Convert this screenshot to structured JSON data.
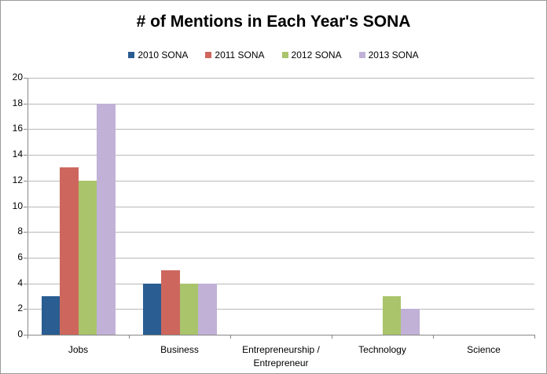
{
  "chart_data": {
    "type": "bar",
    "title": "# of Mentions in Each Year's SONA",
    "xlabel": "",
    "ylabel": "",
    "ylim": [
      0,
      20
    ],
    "yticks": [
      0,
      2,
      4,
      6,
      8,
      10,
      12,
      14,
      16,
      18,
      20
    ],
    "grid": true,
    "legend_position": "top",
    "categories": [
      "Jobs",
      "Business",
      "Entrepreneurship / Entrepreneur",
      "Technology",
      "Science"
    ],
    "series": [
      {
        "name": "2010 SONA",
        "color": "#2a5d92",
        "values": [
          3,
          4,
          0,
          0,
          0
        ]
      },
      {
        "name": "2011 SONA",
        "color": "#cd675e",
        "values": [
          13,
          5,
          0,
          0,
          0
        ]
      },
      {
        "name": "2012 SONA",
        "color": "#a9c46b",
        "values": [
          12,
          4,
          0,
          3,
          0
        ]
      },
      {
        "name": "2013 SONA",
        "color": "#c1b1d6",
        "values": [
          18,
          4,
          0,
          2,
          0
        ]
      }
    ]
  },
  "labels": {
    "title": "# of Mentions in Each Year's SONA",
    "legend": [
      "2010 SONA",
      "2011 SONA",
      "2012 SONA",
      "2013 SONA"
    ],
    "yticks": [
      "0",
      "2",
      "4",
      "6",
      "8",
      "10",
      "12",
      "14",
      "16",
      "18",
      "20"
    ],
    "categories": [
      "Jobs",
      "Business",
      "Entrepreneurship / Entrepreneur",
      "Technology",
      "Science"
    ]
  }
}
